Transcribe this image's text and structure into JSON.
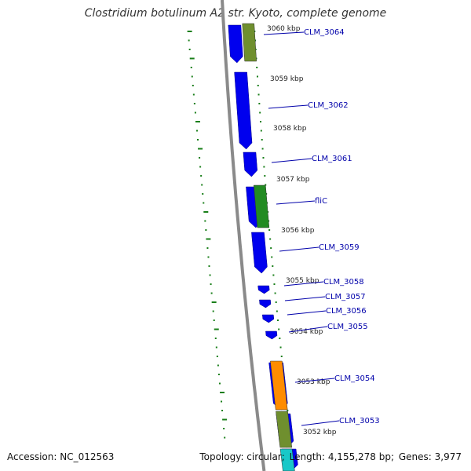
{
  "title": "Clostridium botulinum A2 str. Kyoto, complete genome",
  "accession": "Accession: NC_012563",
  "summary": {
    "topology": "Topology: circular;",
    "length": "Length: 4,155,278 bp;",
    "genes": "Genes: 3,977"
  },
  "colors": {
    "backbone": "#8a8a8a",
    "cds": "#0000ee",
    "gene_olive": "#6f8f2e",
    "gene_green": "#228b22",
    "gene_orange": "#ff8c00",
    "gene_cyan": "#18c8c8",
    "gc_skew": "#1a7f1a",
    "label": "#0000aa"
  },
  "ticks": [
    "3060 kbp",
    "3059 kbp",
    "3058 kbp",
    "3057 kbp",
    "3056 kbp",
    "3055 kbp",
    "3054 kbp",
    "3053 kbp",
    "3052 kbp"
  ],
  "gene_labels": [
    "CLM_3064",
    "CLM_3062",
    "CLM_3061",
    "fliC",
    "CLM_3059",
    "CLM_3058",
    "CLM_3057",
    "CLM_3056",
    "CLM_3055",
    "CLM_3054",
    "CLM_3053"
  ]
}
